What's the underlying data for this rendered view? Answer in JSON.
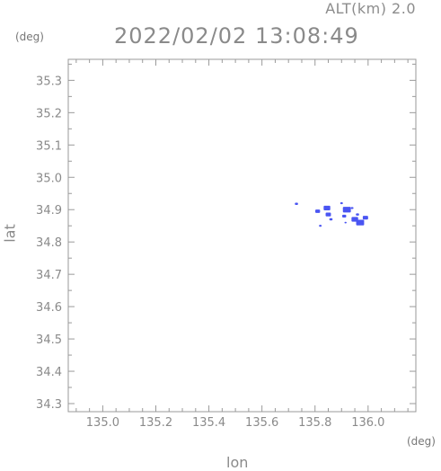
{
  "header": {
    "alt_label": "ALT(km) 2.0",
    "timestamp": "2022/02/02 13:08:49",
    "y_unit": "(deg)",
    "x_unit": "(deg)"
  },
  "colors": {
    "axis": "#9a9a9a",
    "echo": "#4a55f2"
  },
  "chart_data": {
    "type": "scatter",
    "xlabel": "lon",
    "ylabel": "lat",
    "xlim": [
      134.87,
      136.18
    ],
    "ylim": [
      34.275,
      35.365
    ],
    "grid": false,
    "xticks": [
      135.0,
      135.2,
      135.4,
      135.6,
      135.8,
      136.0
    ],
    "xtick_labels": [
      "135.0",
      "135.2",
      "135.4",
      "135.6",
      "135.8",
      "136.0"
    ],
    "yticks": [
      34.3,
      34.4,
      34.5,
      34.6,
      34.7,
      34.8,
      34.9,
      35.0,
      35.1,
      35.2,
      35.3
    ],
    "ytick_labels": [
      "34.3",
      "34.4",
      "34.5",
      "34.6",
      "34.7",
      "34.8",
      "34.9",
      "35.0",
      "35.1",
      "35.2",
      "35.3"
    ],
    "echo_cells": [
      {
        "lon": 135.73,
        "lat": 34.918,
        "size": 0.012
      },
      {
        "lon": 135.81,
        "lat": 34.895,
        "size": 0.018
      },
      {
        "lon": 135.845,
        "lat": 34.905,
        "size": 0.025
      },
      {
        "lon": 135.85,
        "lat": 34.885,
        "size": 0.02
      },
      {
        "lon": 135.86,
        "lat": 34.87,
        "size": 0.012
      },
      {
        "lon": 135.82,
        "lat": 34.85,
        "size": 0.01
      },
      {
        "lon": 135.9,
        "lat": 34.92,
        "size": 0.01
      },
      {
        "lon": 135.92,
        "lat": 34.9,
        "size": 0.03
      },
      {
        "lon": 135.91,
        "lat": 34.88,
        "size": 0.015
      },
      {
        "lon": 135.94,
        "lat": 34.905,
        "size": 0.01
      },
      {
        "lon": 135.95,
        "lat": 34.87,
        "size": 0.025
      },
      {
        "lon": 135.97,
        "lat": 34.86,
        "size": 0.03
      },
      {
        "lon": 135.99,
        "lat": 34.875,
        "size": 0.02
      },
      {
        "lon": 135.96,
        "lat": 34.885,
        "size": 0.012
      },
      {
        "lon": 135.915,
        "lat": 34.86,
        "size": 0.008
      }
    ]
  }
}
